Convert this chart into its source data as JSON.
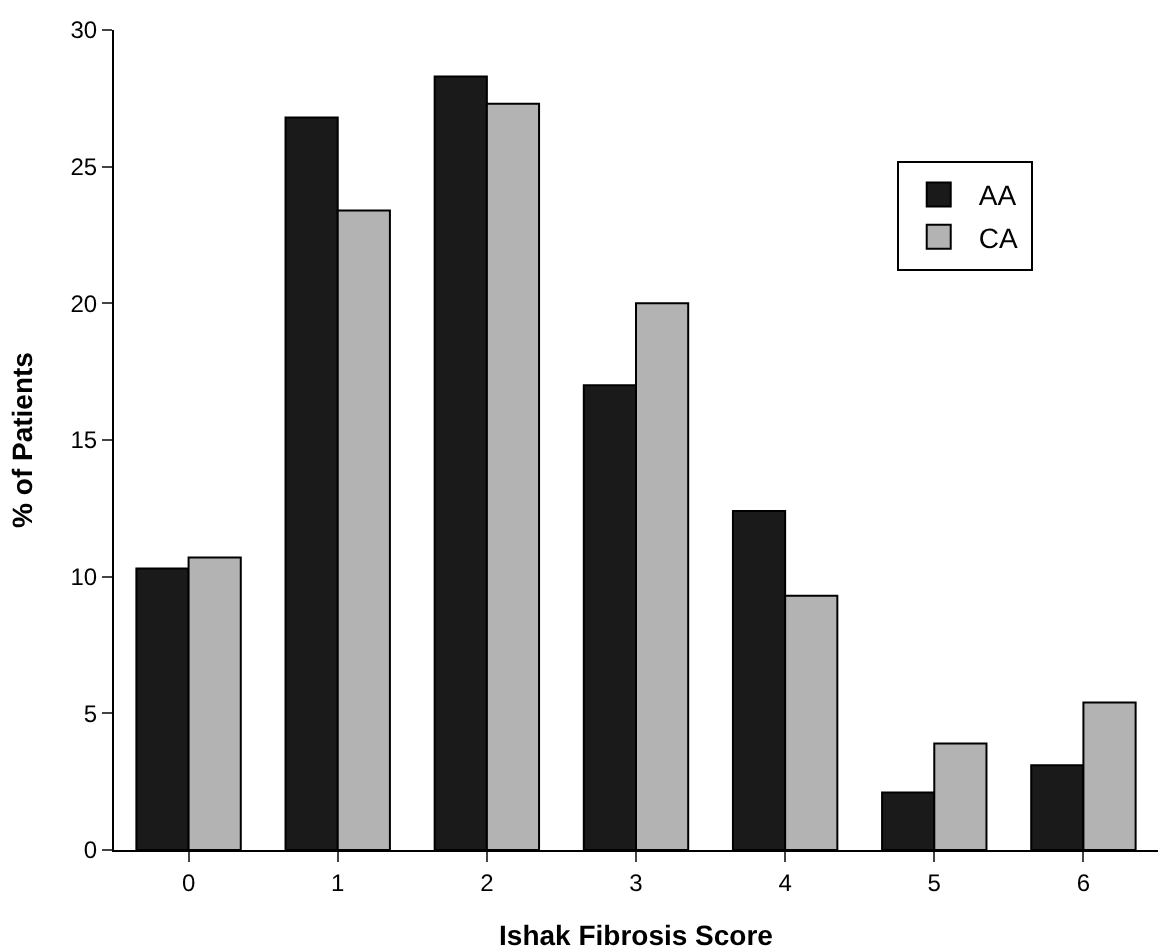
{
  "chart_data": {
    "type": "bar",
    "xlabel": "Ishak Fibrosis Score",
    "ylabel": "% of Patients",
    "categories": [
      "0",
      "1",
      "2",
      "3",
      "4",
      "5",
      "6"
    ],
    "series": [
      {
        "name": "AA",
        "color": "#1a1a1a",
        "values": [
          10.3,
          26.8,
          28.3,
          17.0,
          12.4,
          2.1,
          3.1
        ]
      },
      {
        "name": "CA",
        "color": "#b3b3b3",
        "values": [
          10.7,
          23.4,
          27.3,
          20.0,
          9.3,
          3.9,
          5.4
        ]
      }
    ],
    "ylim": [
      0,
      30
    ],
    "yticks": [
      0,
      5,
      10,
      15,
      20,
      25,
      30
    ],
    "grid": false,
    "legend": "top right"
  }
}
